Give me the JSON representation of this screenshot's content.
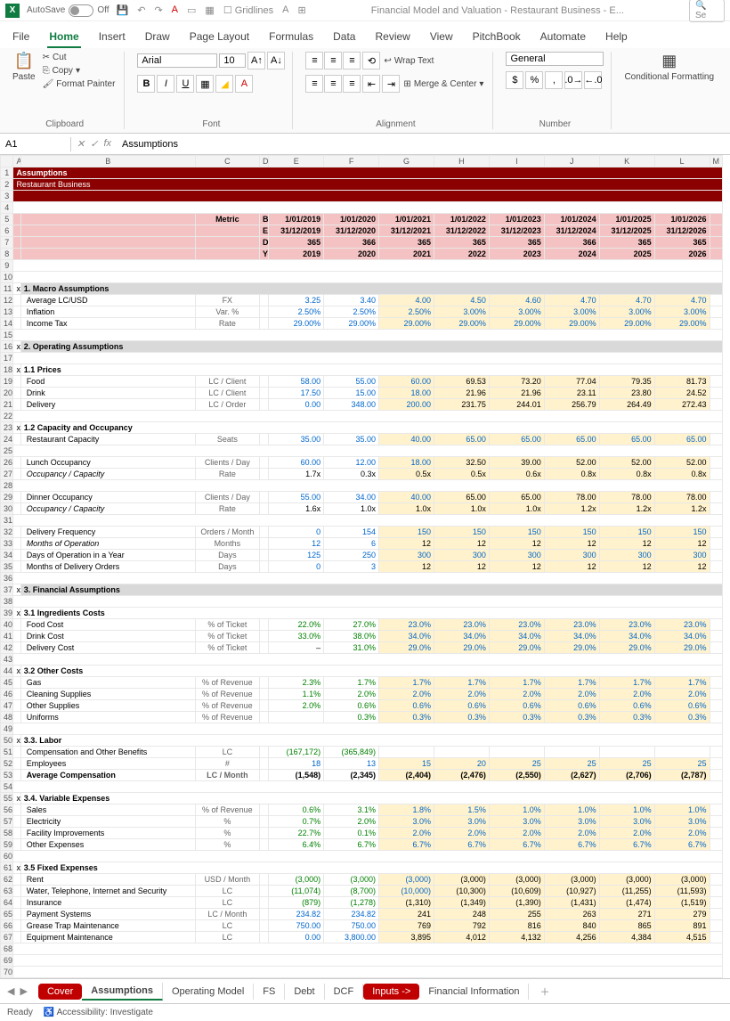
{
  "titlebar": {
    "autosave": "AutoSave",
    "autosave_state": "Off",
    "doc_title": "Financial Model and Valuation - Restaurant Business - E...",
    "search": "Se",
    "gridlines": "Gridlines"
  },
  "ribbon_tabs": [
    "File",
    "Home",
    "Insert",
    "Draw",
    "Page Layout",
    "Formulas",
    "Data",
    "Review",
    "View",
    "PitchBook",
    "Automate",
    "Help"
  ],
  "ribbon_active": 1,
  "clipboard": {
    "paste": "Paste",
    "cut": "Cut",
    "copy": "Copy",
    "fp": "Format Painter",
    "label": "Clipboard"
  },
  "font": {
    "name": "Arial",
    "size": "10",
    "label": "Font"
  },
  "alignment": {
    "wrap": "Wrap Text",
    "merge": "Merge & Center",
    "label": "Alignment"
  },
  "number": {
    "format": "General",
    "label": "Number"
  },
  "styles": {
    "cf": "Conditional Formatting",
    "ft": "Fo T"
  },
  "formula": {
    "cell": "A1",
    "value": "Assumptions"
  },
  "cols": [
    "",
    "A",
    "B",
    "C",
    "D",
    "E",
    "F",
    "G",
    "H",
    "I",
    "J",
    "K",
    "L",
    "M"
  ],
  "header": {
    "title": "Assumptions",
    "subtitle": "Restaurant Business"
  },
  "label_metric": "Metric",
  "period_labels": [
    "BOP",
    "EOP",
    "Days",
    "Year"
  ],
  "periods": [
    {
      "bop": "1/01/2019",
      "eop": "31/12/2019",
      "days": "365",
      "year": "2019"
    },
    {
      "bop": "1/01/2020",
      "eop": "31/12/2020",
      "days": "366",
      "year": "2020"
    },
    {
      "bop": "1/01/2021",
      "eop": "31/12/2021",
      "days": "365",
      "year": "2021"
    },
    {
      "bop": "1/01/2022",
      "eop": "31/12/2022",
      "days": "365",
      "year": "2022"
    },
    {
      "bop": "1/01/2023",
      "eop": "31/12/2023",
      "days": "365",
      "year": "2023"
    },
    {
      "bop": "1/01/2024",
      "eop": "31/12/2024",
      "days": "366",
      "year": "2024"
    },
    {
      "bop": "1/01/2025",
      "eop": "31/12/2025",
      "days": "365",
      "year": "2025"
    },
    {
      "bop": "1/01/2026",
      "eop": "31/12/2026",
      "days": "365",
      "year": "2026"
    }
  ],
  "rows": [
    {
      "n": 11,
      "type": "sec",
      "label": "1. Macro Assumptions"
    },
    {
      "n": 12,
      "label": "Average LC/USD",
      "metric": "FX",
      "vals": [
        "3.25",
        "3.40",
        "4.00",
        "4.50",
        "4.60",
        "4.70",
        "4.70",
        "4.70"
      ],
      "cls": [
        "blue",
        "blue",
        "yel blue",
        "yel blue",
        "yel blue",
        "yel blue",
        "yel blue",
        "yel blue"
      ]
    },
    {
      "n": 13,
      "label": "Inflation",
      "metric": "Var. %",
      "vals": [
        "2.50%",
        "2.50%",
        "2.50%",
        "3.00%",
        "3.00%",
        "3.00%",
        "3.00%",
        "3.00%"
      ],
      "cls": [
        "blue",
        "blue",
        "yel blue",
        "yel blue",
        "yel blue",
        "yel blue",
        "yel blue",
        "yel blue"
      ]
    },
    {
      "n": 14,
      "label": "Income Tax",
      "metric": "Rate",
      "vals": [
        "29.00%",
        "29.00%",
        "29.00%",
        "29.00%",
        "29.00%",
        "29.00%",
        "29.00%",
        "29.00%"
      ],
      "cls": [
        "blue",
        "blue",
        "yel blue",
        "yel blue",
        "yel blue",
        "yel blue",
        "yel blue",
        "yel blue"
      ]
    },
    {
      "n": 15,
      "type": "blank"
    },
    {
      "n": 16,
      "type": "sec",
      "label": "2. Operating Assumptions"
    },
    {
      "n": 17,
      "type": "blank"
    },
    {
      "n": 18,
      "type": "sub",
      "label": "1.1 Prices"
    },
    {
      "n": 19,
      "label": "Food",
      "metric": "LC / Client",
      "vals": [
        "58.00",
        "55.00",
        "60.00",
        "69.53",
        "73.20",
        "77.04",
        "79.35",
        "81.73"
      ],
      "cls": [
        "blue",
        "blue",
        "yel blue",
        "yel",
        "yel",
        "yel",
        "yel",
        "yel"
      ]
    },
    {
      "n": 20,
      "label": "Drink",
      "metric": "LC / Client",
      "vals": [
        "17.50",
        "15.00",
        "18.00",
        "21.96",
        "21.96",
        "23.11",
        "23.80",
        "24.52"
      ],
      "cls": [
        "blue",
        "blue",
        "yel blue",
        "yel",
        "yel",
        "yel",
        "yel",
        "yel"
      ]
    },
    {
      "n": 21,
      "label": "Delivery",
      "metric": "LC / Order",
      "vals": [
        "0.00",
        "348.00",
        "200.00",
        "231.75",
        "244.01",
        "256.79",
        "264.49",
        "272.43"
      ],
      "cls": [
        "blue",
        "blue",
        "yel blue",
        "yel",
        "yel",
        "yel",
        "yel",
        "yel"
      ]
    },
    {
      "n": 22,
      "type": "blank"
    },
    {
      "n": 23,
      "type": "sub",
      "label": "1.2 Capacity and Occupancy"
    },
    {
      "n": 24,
      "label": "Restaurant Capacity",
      "metric": "Seats",
      "vals": [
        "35.00",
        "35.00",
        "40.00",
        "65.00",
        "65.00",
        "65.00",
        "65.00",
        "65.00"
      ],
      "cls": [
        "blue",
        "blue",
        "yel blue",
        "yel blue",
        "yel blue",
        "yel blue",
        "yel blue",
        "yel blue"
      ]
    },
    {
      "n": 25,
      "type": "blank"
    },
    {
      "n": 26,
      "label": "Lunch Occupancy",
      "metric": "Clients / Day",
      "vals": [
        "60.00",
        "12.00",
        "18.00",
        "32.50",
        "39.00",
        "52.00",
        "52.00",
        "52.00"
      ],
      "cls": [
        "blue",
        "blue",
        "yel blue",
        "yel",
        "yel",
        "yel",
        "yel",
        "yel"
      ]
    },
    {
      "n": 27,
      "label": "Occupancy / Capacity",
      "italic": true,
      "metric": "Rate",
      "vals": [
        "1.7x",
        "0.3x",
        "0.5x",
        "0.5x",
        "0.6x",
        "0.8x",
        "0.8x",
        "0.8x"
      ],
      "cls": [
        "",
        "",
        "yel",
        "yel",
        "yel",
        "yel",
        "yel",
        "yel"
      ]
    },
    {
      "n": 28,
      "type": "blank"
    },
    {
      "n": 29,
      "label": "Dinner Occupancy",
      "metric": "Clients / Day",
      "vals": [
        "55.00",
        "34.00",
        "40.00",
        "65.00",
        "65.00",
        "78.00",
        "78.00",
        "78.00"
      ],
      "cls": [
        "blue",
        "blue",
        "yel blue",
        "yel",
        "yel",
        "yel",
        "yel",
        "yel"
      ]
    },
    {
      "n": 30,
      "label": "Occupancy / Capacity",
      "italic": true,
      "metric": "Rate",
      "vals": [
        "1.6x",
        "1.0x",
        "1.0x",
        "1.0x",
        "1.0x",
        "1.2x",
        "1.2x",
        "1.2x"
      ],
      "cls": [
        "",
        "",
        "yel",
        "yel",
        "yel",
        "yel",
        "yel",
        "yel"
      ]
    },
    {
      "n": 31,
      "type": "blank"
    },
    {
      "n": 32,
      "label": "Delivery Frequency",
      "metric": "Orders / Month",
      "vals": [
        "0",
        "154",
        "150",
        "150",
        "150",
        "150",
        "150",
        "150"
      ],
      "cls": [
        "blue",
        "blue",
        "yel blue",
        "yel blue",
        "yel blue",
        "yel blue",
        "yel blue",
        "yel blue"
      ]
    },
    {
      "n": 33,
      "label": "Months of Operation",
      "italic": true,
      "metric": "Months",
      "vals": [
        "12",
        "6",
        "12",
        "12",
        "12",
        "12",
        "12",
        "12"
      ],
      "cls": [
        "blue",
        "blue",
        "yel",
        "yel",
        "yel",
        "yel",
        "yel",
        "yel"
      ]
    },
    {
      "n": 34,
      "label": "Days of Operation in a Year",
      "metric": "Days",
      "vals": [
        "125",
        "250",
        "300",
        "300",
        "300",
        "300",
        "300",
        "300"
      ],
      "cls": [
        "blue",
        "blue",
        "yel blue",
        "yel blue",
        "yel blue",
        "yel blue",
        "yel blue",
        "yel blue"
      ]
    },
    {
      "n": 35,
      "label": "Months of Delivery Orders",
      "metric": "Days",
      "vals": [
        "0",
        "3",
        "12",
        "12",
        "12",
        "12",
        "12",
        "12"
      ],
      "cls": [
        "blue",
        "blue",
        "yel",
        "yel",
        "yel",
        "yel",
        "yel",
        "yel"
      ]
    },
    {
      "n": 36,
      "type": "blank"
    },
    {
      "n": 37,
      "type": "sec",
      "label": "3. Financial Assumptions"
    },
    {
      "n": 38,
      "type": "blank"
    },
    {
      "n": 39,
      "type": "sub",
      "label": "3.1 Ingredients Costs"
    },
    {
      "n": 40,
      "label": "Food Cost",
      "metric": "% of Ticket",
      "vals": [
        "22.0%",
        "27.0%",
        "23.0%",
        "23.0%",
        "23.0%",
        "23.0%",
        "23.0%",
        "23.0%"
      ],
      "cls": [
        "green",
        "green",
        "yel blue",
        "yel blue",
        "yel blue",
        "yel blue",
        "yel blue",
        "yel blue"
      ]
    },
    {
      "n": 41,
      "label": "Drink Cost",
      "metric": "% of Ticket",
      "vals": [
        "33.0%",
        "38.0%",
        "34.0%",
        "34.0%",
        "34.0%",
        "34.0%",
        "34.0%",
        "34.0%"
      ],
      "cls": [
        "green",
        "green",
        "yel blue",
        "yel blue",
        "yel blue",
        "yel blue",
        "yel blue",
        "yel blue"
      ]
    },
    {
      "n": 42,
      "label": "Delivery Cost",
      "metric": "% of Ticket",
      "vals": [
        "–",
        "31.0%",
        "29.0%",
        "29.0%",
        "29.0%",
        "29.0%",
        "29.0%",
        "29.0%"
      ],
      "cls": [
        "",
        "green",
        "yel blue",
        "yel blue",
        "yel blue",
        "yel blue",
        "yel blue",
        "yel blue"
      ]
    },
    {
      "n": 43,
      "type": "blank"
    },
    {
      "n": 44,
      "type": "sub",
      "label": "3.2 Other Costs"
    },
    {
      "n": 45,
      "label": "Gas",
      "metric": "% of Revenue",
      "vals": [
        "2.3%",
        "1.7%",
        "1.7%",
        "1.7%",
        "1.7%",
        "1.7%",
        "1.7%",
        "1.7%"
      ],
      "cls": [
        "green",
        "green",
        "yel blue",
        "yel blue",
        "yel blue",
        "yel blue",
        "yel blue",
        "yel blue"
      ]
    },
    {
      "n": 46,
      "label": "Cleaning Supplies",
      "metric": "% of Revenue",
      "vals": [
        "1.1%",
        "2.0%",
        "2.0%",
        "2.0%",
        "2.0%",
        "2.0%",
        "2.0%",
        "2.0%"
      ],
      "cls": [
        "green",
        "green",
        "yel blue",
        "yel blue",
        "yel blue",
        "yel blue",
        "yel blue",
        "yel blue"
      ]
    },
    {
      "n": 47,
      "label": "Other Supplies",
      "metric": "% of Revenue",
      "vals": [
        "2.0%",
        "0.6%",
        "0.6%",
        "0.6%",
        "0.6%",
        "0.6%",
        "0.6%",
        "0.6%"
      ],
      "cls": [
        "green",
        "green",
        "yel blue",
        "yel blue",
        "yel blue",
        "yel blue",
        "yel blue",
        "yel blue"
      ]
    },
    {
      "n": 48,
      "label": "Uniforms",
      "metric": "% of Revenue",
      "vals": [
        "",
        "0.3%",
        "0.3%",
        "0.3%",
        "0.3%",
        "0.3%",
        "0.3%",
        "0.3%"
      ],
      "cls": [
        "",
        "green",
        "yel blue",
        "yel blue",
        "yel blue",
        "yel blue",
        "yel blue",
        "yel blue"
      ]
    },
    {
      "n": 49,
      "type": "blank"
    },
    {
      "n": 50,
      "type": "sub",
      "label": "3.3. Labor"
    },
    {
      "n": 51,
      "label": "Compensation and Other Benefits",
      "metric": "LC",
      "vals": [
        "(167,172)",
        "(365,849)",
        "",
        "",
        "",
        "",
        "",
        ""
      ],
      "cls": [
        "green",
        "green",
        "",
        "",
        "",
        "",
        "",
        ""
      ]
    },
    {
      "n": 52,
      "label": "Employees",
      "metric": "#",
      "vals": [
        "18",
        "13",
        "15",
        "20",
        "25",
        "25",
        "25",
        "25"
      ],
      "cls": [
        "blue",
        "blue",
        "yel blue",
        "yel blue",
        "yel blue",
        "yel blue",
        "yel blue",
        "yel blue"
      ]
    },
    {
      "n": 53,
      "label": "Average Compensation",
      "bold": true,
      "metric": "LC / Month",
      "metricBold": true,
      "vals": [
        "(1,548)",
        "(2,345)",
        "(2,404)",
        "(2,476)",
        "(2,550)",
        "(2,627)",
        "(2,706)",
        "(2,787)"
      ],
      "cls": [
        "bold c-bt",
        "bold c-bt",
        "yel bold c-bt",
        "yel bold c-bt",
        "yel bold c-bt",
        "yel bold c-bt",
        "yel bold c-bt",
        "yel bold c-bt"
      ]
    },
    {
      "n": 54,
      "type": "blank"
    },
    {
      "n": 55,
      "type": "sub",
      "label": "3.4. Variable Expenses"
    },
    {
      "n": 56,
      "label": "Sales",
      "metric": "% of Revenue",
      "vals": [
        "0.6%",
        "3.1%",
        "1.8%",
        "1.5%",
        "1.0%",
        "1.0%",
        "1.0%",
        "1.0%"
      ],
      "cls": [
        "green",
        "green",
        "yel blue",
        "yel blue",
        "yel blue",
        "yel blue",
        "yel blue",
        "yel blue"
      ]
    },
    {
      "n": 57,
      "label": "Electricity",
      "metric": "%",
      "vals": [
        "0.7%",
        "2.0%",
        "3.0%",
        "3.0%",
        "3.0%",
        "3.0%",
        "3.0%",
        "3.0%"
      ],
      "cls": [
        "green",
        "green",
        "yel blue",
        "yel blue",
        "yel blue",
        "yel blue",
        "yel blue",
        "yel blue"
      ]
    },
    {
      "n": 58,
      "label": "Facility Improvements",
      "metric": "%",
      "vals": [
        "22.7%",
        "0.1%",
        "2.0%",
        "2.0%",
        "2.0%",
        "2.0%",
        "2.0%",
        "2.0%"
      ],
      "cls": [
        "green",
        "green",
        "yel blue",
        "yel blue",
        "yel blue",
        "yel blue",
        "yel blue",
        "yel blue"
      ]
    },
    {
      "n": 59,
      "label": "Other Expenses",
      "metric": "%",
      "vals": [
        "6.4%",
        "6.7%",
        "6.7%",
        "6.7%",
        "6.7%",
        "6.7%",
        "6.7%",
        "6.7%"
      ],
      "cls": [
        "green",
        "green",
        "yel blue",
        "yel blue",
        "yel blue",
        "yel blue",
        "yel blue",
        "yel blue"
      ]
    },
    {
      "n": 60,
      "type": "blank"
    },
    {
      "n": 61,
      "type": "sub",
      "label": "3.5 Fixed Expenses"
    },
    {
      "n": 62,
      "label": "Rent",
      "metric": "USD / Month",
      "vals": [
        "(3,000)",
        "(3,000)",
        "(3,000)",
        "(3,000)",
        "(3,000)",
        "(3,000)",
        "(3,000)",
        "(3,000)"
      ],
      "cls": [
        "green",
        "green",
        "yel blue",
        "yel",
        "yel",
        "yel",
        "yel",
        "yel"
      ]
    },
    {
      "n": 63,
      "label": "Water, Telephone, Internet and Security",
      "metric": "LC",
      "vals": [
        "(11,074)",
        "(8,700)",
        "(10,000)",
        "(10,300)",
        "(10,609)",
        "(10,927)",
        "(11,255)",
        "(11,593)"
      ],
      "cls": [
        "green",
        "green",
        "yel blue",
        "yel",
        "yel",
        "yel",
        "yel",
        "yel"
      ]
    },
    {
      "n": 64,
      "label": "Insurance",
      "metric": "LC",
      "vals": [
        "(879)",
        "(1,278)",
        "(1,310)",
        "(1,349)",
        "(1,390)",
        "(1,431)",
        "(1,474)",
        "(1,519)"
      ],
      "cls": [
        "green",
        "green",
        "yel",
        "yel",
        "yel",
        "yel",
        "yel",
        "yel"
      ]
    },
    {
      "n": 65,
      "label": "Payment Systems",
      "metric": "LC / Month",
      "vals": [
        "234.82",
        "234.82",
        "241",
        "248",
        "255",
        "263",
        "271",
        "279"
      ],
      "cls": [
        "blue",
        "blue",
        "yel",
        "yel",
        "yel",
        "yel",
        "yel",
        "yel"
      ]
    },
    {
      "n": 66,
      "label": "Grease Trap Maintenance",
      "metric": "LC",
      "vals": [
        "750.00",
        "750.00",
        "769",
        "792",
        "816",
        "840",
        "865",
        "891"
      ],
      "cls": [
        "blue",
        "blue",
        "yel",
        "yel",
        "yel",
        "yel",
        "yel",
        "yel"
      ]
    },
    {
      "n": 67,
      "label": "Equipment Maintenance",
      "metric": "LC",
      "vals": [
        "0.00",
        "3,800.00",
        "3,895",
        "4,012",
        "4,132",
        "4,256",
        "4,384",
        "4,515"
      ],
      "cls": [
        "blue",
        "blue",
        "yel",
        "yel",
        "yel",
        "yel",
        "yel",
        "yel"
      ]
    },
    {
      "n": 68,
      "type": "blank"
    },
    {
      "n": 69,
      "type": "blank"
    },
    {
      "n": 70,
      "type": "blank"
    }
  ],
  "sheets": [
    {
      "name": "Cover",
      "style": "red"
    },
    {
      "name": "Assumptions",
      "style": "active"
    },
    {
      "name": "Operating Model",
      "style": ""
    },
    {
      "name": "FS",
      "style": ""
    },
    {
      "name": "Debt",
      "style": ""
    },
    {
      "name": "DCF",
      "style": ""
    },
    {
      "name": "Inputs ->",
      "style": "red"
    },
    {
      "name": "Financial Information",
      "style": ""
    }
  ],
  "status": {
    "ready": "Ready",
    "acc": "Accessibility: Investigate"
  }
}
